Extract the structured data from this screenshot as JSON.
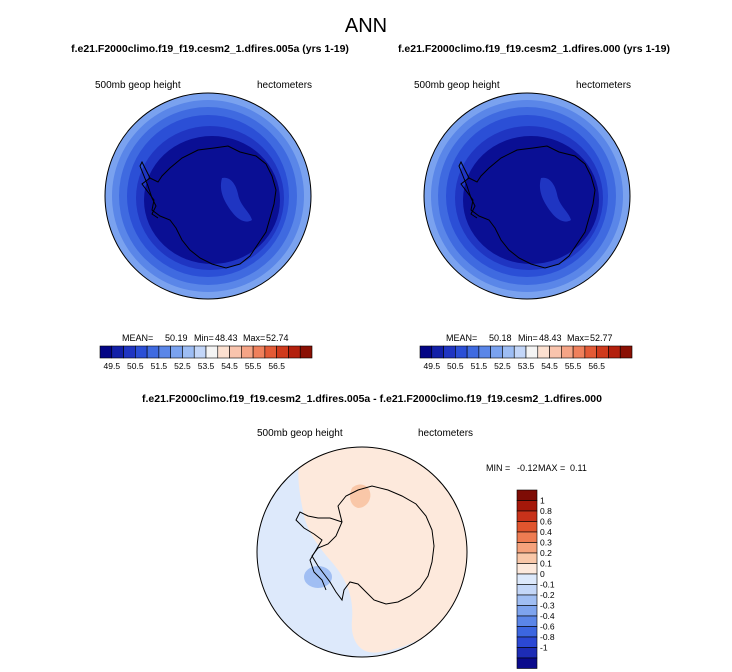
{
  "page": {
    "title": "ANN"
  },
  "colors": {
    "abs_scale": [
      "#040585",
      "#1220a8",
      "#1f35c2",
      "#2b4fd6",
      "#3f6ae0",
      "#5a86e8",
      "#7aa2ef",
      "#9dbdf4",
      "#c3d6f8",
      "#f4f4f4",
      "#fce0d0",
      "#f9c4ad",
      "#f5a486",
      "#ef805c",
      "#e35a36",
      "#cf3a1c",
      "#b3200d",
      "#8a1004"
    ],
    "diff_scale": [
      "#0a0a8c",
      "#1d2cb5",
      "#2b48d4",
      "#3c66e0",
      "#5b86e8",
      "#7ea4ee",
      "#a0bef3",
      "#c4d7f8",
      "#dde9fb",
      "#fde9dc",
      "#f9c7a8",
      "#f5a27c",
      "#ee7c52",
      "#e0552e",
      "#c8321a",
      "#a5180a",
      "#7e0c05"
    ]
  },
  "chart_data": [
    {
      "type": "heatmap",
      "name": "left-panel",
      "title": "f.e21.F2000climo.f19_f19.cesm2_1.dfires.005a (yrs 1-19)",
      "variable": "500mb geop height",
      "units": "hectometers",
      "stats": {
        "mean": "50.19",
        "min": "48.43",
        "max": "52.74"
      },
      "stats_labels": {
        "mean": "MEAN=",
        "min": "Min=",
        "max": "Max="
      },
      "colorbar_ticks": [
        "49.5",
        "50.5",
        "51.5",
        "52.5",
        "53.5",
        "54.5",
        "55.5",
        "56.5"
      ]
    },
    {
      "type": "heatmap",
      "name": "right-panel",
      "title": "f.e21.F2000climo.f19_f19.cesm2_1.dfires.000 (yrs 1-19)",
      "variable": "500mb geop height",
      "units": "hectometers",
      "stats": {
        "mean": "50.18",
        "min": "48.43",
        "max": "52.77"
      },
      "stats_labels": {
        "mean": "MEAN=",
        "min": "Min=",
        "max": "Max="
      },
      "colorbar_ticks": [
        "49.5",
        "50.5",
        "51.5",
        "52.5",
        "53.5",
        "54.5",
        "55.5",
        "56.5"
      ]
    },
    {
      "type": "heatmap",
      "name": "diff-panel",
      "title": "f.e21.F2000climo.f19_f19.cesm2_1.dfires.005a - f.e21.F2000climo.f19_f19.cesm2_1.dfires.000",
      "variable": "500mb geop height",
      "units": "hectometers",
      "stats_text": {
        "min_label": "MIN =",
        "min": "-0.12",
        "max_label": "MAX =",
        "max": "0.11"
      },
      "colorbar_ticks": [
        "1",
        "0.8",
        "0.6",
        "0.4",
        "0.3",
        "0.2",
        "0.1",
        "0",
        "-0.1",
        "-0.2",
        "-0.3",
        "-0.4",
        "-0.6",
        "-0.8",
        "-1"
      ]
    }
  ]
}
